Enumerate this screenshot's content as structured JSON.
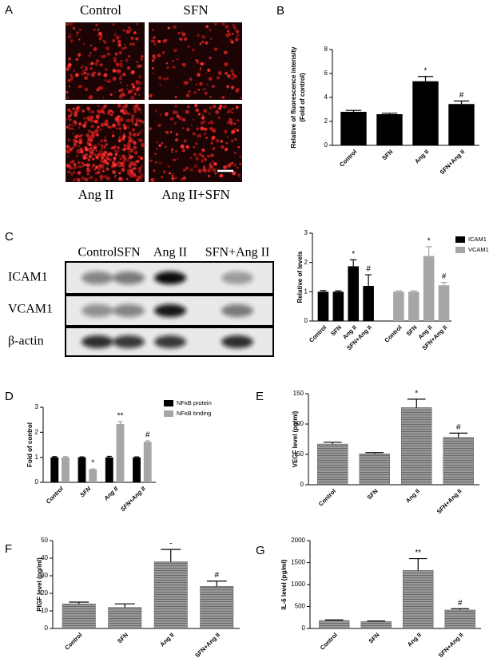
{
  "panel_labels": [
    "A",
    "B",
    "C",
    "D",
    "E",
    "F",
    "G"
  ],
  "micrograph_labels": [
    "Control",
    "SFN",
    "Ang II",
    "Ang II+SFN"
  ],
  "blot": {
    "lanes": [
      "Control",
      "SFN",
      "Ang II",
      "SFN+Ang II"
    ],
    "proteins": [
      "ICAM1",
      "VCAM1",
      "β-actin"
    ]
  },
  "chart_data": [
    {
      "type": "bar",
      "ylabel": [
        "Relative of fluorescence intensity",
        "(Fold of control)"
      ],
      "categories": [
        "Control",
        "SFN",
        "Ang II",
        "SFN+Ang II"
      ],
      "values": [
        2.8,
        2.6,
        5.35,
        3.45
      ],
      "errors": [
        0.12,
        0.08,
        0.4,
        0.25
      ],
      "color": "#000000",
      "annotations": [
        null,
        null,
        "*",
        "#"
      ],
      "ylim": [
        0,
        8
      ],
      "yticks": [
        0,
        2,
        4,
        6,
        8
      ]
    },
    {
      "type": "bar",
      "ylabel": "Relative of levels",
      "group_by": "series",
      "categories": [
        "Control",
        "SFN",
        "Ang II",
        "SFN+Ang II"
      ],
      "series": [
        {
          "name": "ICAM1",
          "color": "#000000",
          "values": [
            1.0,
            1.0,
            1.87,
            1.2
          ],
          "errors": [
            0.04,
            0.03,
            0.22,
            0.38
          ],
          "annotations": [
            null,
            null,
            "*",
            "#"
          ]
        },
        {
          "name": "VCAM1",
          "color": "#a6a6a6",
          "values": [
            1.0,
            1.0,
            2.22,
            1.22
          ],
          "errors": [
            0.03,
            0.03,
            0.32,
            0.1
          ],
          "annotations": [
            null,
            null,
            "*",
            "#"
          ]
        }
      ],
      "ylim": [
        0,
        3
      ],
      "yticks": [
        0,
        1,
        2,
        3
      ]
    },
    {
      "type": "bar",
      "ylabel": "Fold of control",
      "group_by": "category",
      "categories": [
        "Control",
        "SFN",
        "Ang II",
        "SFN+Ang II"
      ],
      "series": [
        {
          "name": "NFκB protein",
          "color": "#000000",
          "values": [
            1,
            1,
            1,
            1
          ],
          "errors": [
            0.03,
            0.02,
            0.04,
            0.02
          ],
          "annotations": [
            null,
            null,
            null,
            null
          ]
        },
        {
          "name": "NFκB bnding",
          "color": "#a6a6a6",
          "values": [
            1.0,
            0.52,
            2.33,
            1.62
          ],
          "errors": [
            0.03,
            0.02,
            0.1,
            0.04
          ],
          "annotations": [
            null,
            "*",
            "**",
            "#"
          ]
        }
      ],
      "ylim": [
        0,
        3
      ],
      "yticks": [
        0,
        1,
        2,
        3
      ]
    },
    {
      "type": "bar",
      "ylabel": "VEGF  level (pg/ml)",
      "categories": [
        "Control",
        "SFN",
        "Ang II",
        "SFN+Ang II"
      ],
      "values": [
        67,
        51,
        127,
        78
      ],
      "errors": [
        3,
        2,
        14,
        7
      ],
      "color": "#9a9a9a",
      "hatch": true,
      "annotations": [
        null,
        null,
        "*",
        "#"
      ],
      "ylim": [
        0,
        150
      ],
      "yticks": [
        0,
        50,
        100,
        150
      ]
    },
    {
      "type": "bar",
      "ylabel": "PlGF  level (pg/ml)",
      "categories": [
        "Control",
        "SFN",
        "Ang II",
        "SFN+Ang II"
      ],
      "values": [
        14,
        12,
        38,
        24
      ],
      "errors": [
        1,
        2,
        7,
        3
      ],
      "color": "#9a9a9a",
      "hatch": true,
      "annotations": [
        null,
        null,
        "-",
        "#"
      ],
      "ylim": [
        0,
        50
      ],
      "yticks": [
        0,
        10,
        20,
        30,
        40,
        50
      ]
    },
    {
      "type": "bar",
      "ylabel": "IL-6  level (pg/ml)",
      "categories": [
        "Control",
        "SFN",
        "Ang II",
        "SFN+Ang II"
      ],
      "values": [
        180,
        160,
        1320,
        420
      ],
      "errors": [
        15,
        10,
        270,
        30
      ],
      "color": "#9a9a9a",
      "hatch": true,
      "annotations": [
        null,
        null,
        "**",
        "#"
      ],
      "ylim": [
        0,
        2000
      ],
      "yticks": [
        0,
        500,
        1000,
        1500,
        2000
      ]
    }
  ]
}
